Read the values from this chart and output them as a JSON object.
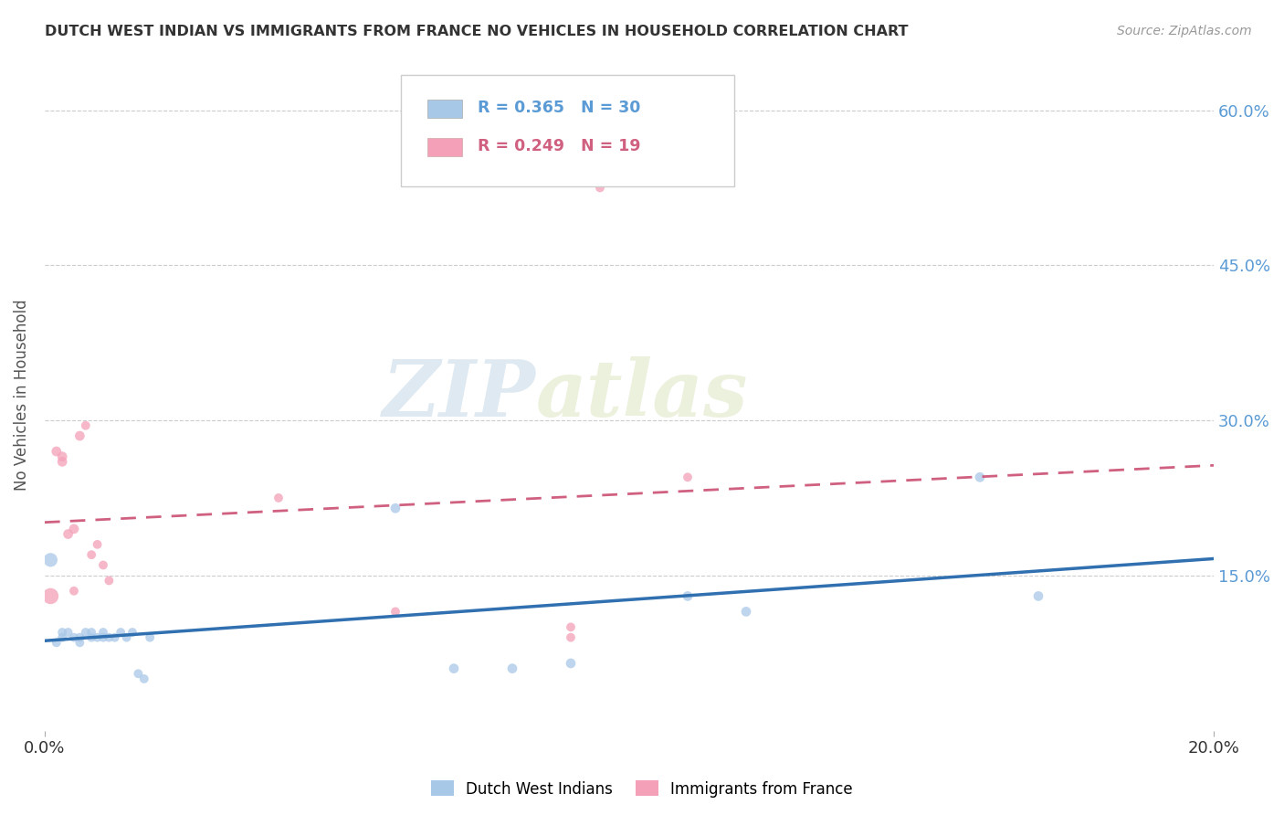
{
  "title": "DUTCH WEST INDIAN VS IMMIGRANTS FROM FRANCE NO VEHICLES IN HOUSEHOLD CORRELATION CHART",
  "source": "Source: ZipAtlas.com",
  "ylabel": "No Vehicles in Household",
  "xlim": [
    0.0,
    0.2
  ],
  "ylim": [
    0.0,
    0.65
  ],
  "ytick_values": [
    0.15,
    0.3,
    0.45,
    0.6
  ],
  "legend_blue_label": "Dutch West Indians",
  "legend_pink_label": "Immigrants from France",
  "r_blue": 0.365,
  "n_blue": 30,
  "r_pink": 0.249,
  "n_pink": 19,
  "blue_color": "#a8c8e8",
  "pink_color": "#f4a0b8",
  "blue_line_color": "#3070b0",
  "pink_line_color": "#d06080",
  "watermark_zip": "ZIP",
  "watermark_atlas": "atlas",
  "blue_x": [
    0.001,
    0.002,
    0.003,
    0.003,
    0.004,
    0.005,
    0.006,
    0.006,
    0.007,
    0.008,
    0.008,
    0.009,
    0.01,
    0.01,
    0.011,
    0.012,
    0.013,
    0.014,
    0.015,
    0.016,
    0.017,
    0.018,
    0.06,
    0.07,
    0.08,
    0.09,
    0.11,
    0.12,
    0.16,
    0.17
  ],
  "blue_y": [
    0.165,
    0.085,
    0.095,
    0.09,
    0.095,
    0.09,
    0.085,
    0.09,
    0.095,
    0.09,
    0.095,
    0.09,
    0.09,
    0.095,
    0.09,
    0.09,
    0.095,
    0.09,
    0.095,
    0.055,
    0.05,
    0.09,
    0.215,
    0.06,
    0.06,
    0.065,
    0.13,
    0.115,
    0.245,
    0.13
  ],
  "blue_sizes": [
    120,
    50,
    50,
    50,
    50,
    50,
    50,
    50,
    50,
    50,
    50,
    50,
    50,
    50,
    50,
    50,
    50,
    50,
    50,
    50,
    50,
    50,
    60,
    60,
    60,
    60,
    60,
    60,
    60,
    60
  ],
  "pink_x": [
    0.001,
    0.002,
    0.003,
    0.003,
    0.004,
    0.005,
    0.005,
    0.006,
    0.007,
    0.008,
    0.009,
    0.01,
    0.011,
    0.04,
    0.06,
    0.09,
    0.09,
    0.095,
    0.11
  ],
  "pink_y": [
    0.13,
    0.27,
    0.265,
    0.26,
    0.19,
    0.195,
    0.135,
    0.285,
    0.295,
    0.17,
    0.18,
    0.16,
    0.145,
    0.225,
    0.115,
    0.09,
    0.1,
    0.525,
    0.245
  ],
  "pink_sizes": [
    160,
    60,
    60,
    60,
    60,
    60,
    50,
    60,
    50,
    50,
    50,
    50,
    50,
    50,
    50,
    50,
    50,
    50,
    50
  ],
  "grid_color": "#cccccc",
  "bg_color": "#ffffff",
  "title_color": "#333333",
  "axis_label_color": "#555555",
  "tick_color_right": "#5b9bd5",
  "tick_color_left": "#333333"
}
